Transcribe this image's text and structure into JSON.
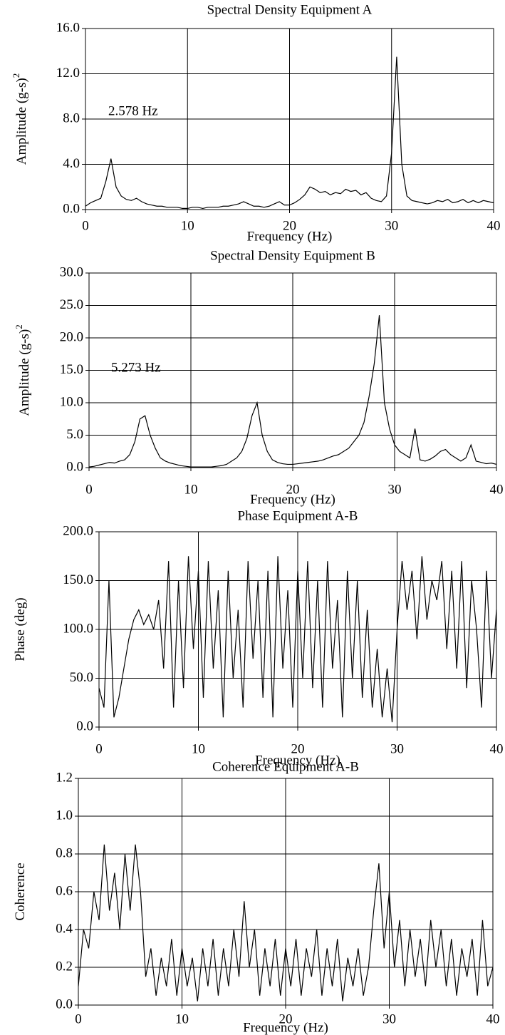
{
  "chart_data": [
    {
      "type": "line",
      "title": "Spectral Density  Equipment A",
      "x_label": "Frequency (Hz)",
      "y_label": "Amplitude (g-s)",
      "y_label_sup": "2",
      "annotation": "2.578 Hz",
      "color": "#000000",
      "grid": true,
      "xlim": [
        0,
        40
      ],
      "xticks": [
        0,
        10,
        20,
        30,
        40
      ],
      "ylim": [
        0,
        16
      ],
      "yticks": [
        {
          "value": 0,
          "label": "0.0"
        },
        {
          "value": 4,
          "label": "4.0"
        },
        {
          "value": 8,
          "label": "8.0"
        },
        {
          "value": 12,
          "label": "12.0"
        },
        {
          "value": 16,
          "label": "16.0"
        }
      ],
      "x": [
        0,
        0.5,
        1,
        1.5,
        2,
        2.5,
        3,
        3.5,
        4,
        4.5,
        5,
        5.5,
        6,
        6.5,
        7,
        7.5,
        8,
        8.5,
        9,
        9.5,
        10,
        10.5,
        11,
        11.5,
        12,
        12.5,
        13,
        13.5,
        14,
        14.5,
        15,
        15.5,
        16,
        16.5,
        17,
        17.5,
        18,
        18.5,
        19,
        19.5,
        20,
        20.5,
        21,
        21.5,
        22,
        22.5,
        23,
        23.5,
        24,
        24.5,
        25,
        25.5,
        26,
        26.5,
        27,
        27.5,
        28,
        28.5,
        29,
        29.5,
        30,
        30.5,
        31,
        31.5,
        32,
        32.5,
        33,
        33.5,
        34,
        34.5,
        35,
        35.5,
        36,
        36.5,
        37,
        37.5,
        38,
        38.5,
        39,
        39.5,
        40
      ],
      "values": [
        0.3,
        0.6,
        0.8,
        1.0,
        2.5,
        4.5,
        2.0,
        1.2,
        0.9,
        0.8,
        1.0,
        0.7,
        0.5,
        0.4,
        0.3,
        0.3,
        0.2,
        0.2,
        0.2,
        0.1,
        0.1,
        0.2,
        0.2,
        0.1,
        0.2,
        0.2,
        0.2,
        0.3,
        0.3,
        0.4,
        0.5,
        0.7,
        0.5,
        0.3,
        0.3,
        0.2,
        0.3,
        0.5,
        0.7,
        0.4,
        0.4,
        0.6,
        0.9,
        1.3,
        2.0,
        1.8,
        1.5,
        1.6,
        1.3,
        1.5,
        1.4,
        1.8,
        1.6,
        1.7,
        1.3,
        1.5,
        1.0,
        0.8,
        0.7,
        1.2,
        5.0,
        13.5,
        4.0,
        1.2,
        0.8,
        0.7,
        0.6,
        0.5,
        0.6,
        0.8,
        0.7,
        0.9,
        0.6,
        0.7,
        0.9,
        0.6,
        0.8,
        0.6,
        0.8,
        0.7,
        0.6
      ]
    },
    {
      "type": "line",
      "title": "Spectral Density  Equipment B",
      "x_label": "Frequency (Hz)",
      "y_label": "Amplitude (g-s)",
      "y_label_sup": "2",
      "annotation": "5.273 Hz",
      "color": "#000000",
      "grid": true,
      "xlim": [
        0,
        40
      ],
      "xticks": [
        0,
        10,
        20,
        30,
        40
      ],
      "ylim": [
        0,
        30
      ],
      "yticks": [
        {
          "value": 0,
          "label": "0.0"
        },
        {
          "value": 5,
          "label": "5.0"
        },
        {
          "value": 10,
          "label": "10.0"
        },
        {
          "value": 15,
          "label": "15.0"
        },
        {
          "value": 20,
          "label": "20.0"
        },
        {
          "value": 25,
          "label": "25.0"
        },
        {
          "value": 30,
          "label": "30.0"
        }
      ],
      "x": [
        0,
        0.5,
        1,
        1.5,
        2,
        2.5,
        3,
        3.5,
        4,
        4.5,
        5,
        5.5,
        6,
        6.5,
        7,
        7.5,
        8,
        8.5,
        9,
        9.5,
        10,
        10.5,
        11,
        11.5,
        12,
        12.5,
        13,
        13.5,
        14,
        14.5,
        15,
        15.5,
        16,
        16.5,
        17,
        17.5,
        18,
        18.5,
        19,
        19.5,
        20,
        20.5,
        21,
        21.5,
        22,
        22.5,
        23,
        23.5,
        24,
        24.5,
        25,
        25.5,
        26,
        26.5,
        27,
        27.5,
        28,
        28.5,
        29,
        29.5,
        30,
        30.5,
        31,
        31.5,
        32,
        32.5,
        33,
        33.5,
        34,
        34.5,
        35,
        35.5,
        36,
        36.5,
        37,
        37.5,
        38,
        38.5,
        39,
        39.5,
        40
      ],
      "values": [
        0.1,
        0.2,
        0.4,
        0.6,
        0.8,
        0.7,
        1.0,
        1.2,
        2.0,
        4.0,
        7.5,
        8.0,
        5.0,
        3.0,
        1.5,
        1.0,
        0.7,
        0.5,
        0.3,
        0.2,
        0.1,
        0.1,
        0.1,
        0.1,
        0.1,
        0.2,
        0.3,
        0.5,
        1.0,
        1.5,
        2.5,
        4.5,
        8.0,
        10.0,
        5.0,
        2.5,
        1.2,
        0.8,
        0.6,
        0.5,
        0.5,
        0.6,
        0.7,
        0.8,
        0.9,
        1.0,
        1.2,
        1.5,
        1.8,
        2.0,
        2.5,
        3.0,
        4.0,
        5.0,
        7.0,
        11.0,
        16.0,
        23.5,
        10.0,
        6.0,
        3.5,
        2.5,
        2.0,
        1.5,
        6.0,
        1.2,
        1.0,
        1.3,
        1.8,
        2.5,
        2.8,
        2.0,
        1.5,
        1.0,
        1.5,
        3.5,
        1.0,
        0.8,
        0.6,
        0.7,
        0.5
      ]
    },
    {
      "type": "line",
      "title": "Phase Equipment A-B",
      "x_label": "Frequency (Hz)",
      "y_label": "Phase (deg)",
      "color": "#000000",
      "grid": true,
      "xlim": [
        0,
        40
      ],
      "xticks": [
        0,
        10,
        20,
        30,
        40
      ],
      "ylim": [
        0,
        200
      ],
      "yticks": [
        {
          "value": 0,
          "label": "0.0"
        },
        {
          "value": 50,
          "label": "50.0"
        },
        {
          "value": 100,
          "label": "100.0"
        },
        {
          "value": 150,
          "label": "150.0"
        },
        {
          "value": 200,
          "label": "200.0"
        }
      ],
      "x": [
        0,
        0.5,
        1,
        1.5,
        2,
        2.5,
        3,
        3.5,
        4,
        4.5,
        5,
        5.5,
        6,
        6.5,
        7,
        7.5,
        8,
        8.5,
        9,
        9.5,
        10,
        10.5,
        11,
        11.5,
        12,
        12.5,
        13,
        13.5,
        14,
        14.5,
        15,
        15.5,
        16,
        16.5,
        17,
        17.5,
        18,
        18.5,
        19,
        19.5,
        20,
        20.5,
        21,
        21.5,
        22,
        22.5,
        23,
        23.5,
        24,
        24.5,
        25,
        25.5,
        26,
        26.5,
        27,
        27.5,
        28,
        28.5,
        29,
        29.5,
        30,
        30.5,
        31,
        31.5,
        32,
        32.5,
        33,
        33.5,
        34,
        34.5,
        35,
        35.5,
        36,
        36.5,
        37,
        37.5,
        38,
        38.5,
        39,
        39.5,
        40
      ],
      "values": [
        40,
        20,
        150,
        10,
        30,
        60,
        90,
        110,
        120,
        105,
        115,
        100,
        130,
        60,
        170,
        20,
        150,
        40,
        175,
        80,
        160,
        30,
        170,
        60,
        140,
        10,
        160,
        50,
        120,
        20,
        170,
        70,
        150,
        30,
        160,
        10,
        175,
        60,
        140,
        20,
        160,
        50,
        170,
        40,
        150,
        20,
        170,
        60,
        130,
        10,
        160,
        50,
        150,
        30,
        120,
        20,
        80,
        10,
        60,
        5,
        100,
        170,
        120,
        160,
        90,
        175,
        110,
        150,
        130,
        170,
        80,
        160,
        60,
        170,
        40,
        150,
        100,
        20,
        160,
        50,
        120
      ]
    },
    {
      "type": "line",
      "title": "Coherence Equipment A-B",
      "x_label": "Frequency (Hz)",
      "y_label": "Coherence",
      "color": "#000000",
      "grid": true,
      "xlim": [
        0,
        40
      ],
      "xticks": [
        0,
        10,
        20,
        30,
        40
      ],
      "ylim": [
        0,
        1.2
      ],
      "yticks": [
        {
          "value": 0,
          "label": "0.0"
        },
        0.2,
        0.4,
        0.6,
        0.8,
        {
          "value": 1,
          "label": "1.0"
        },
        1.2
      ],
      "x": [
        0,
        0.5,
        1,
        1.5,
        2,
        2.5,
        3,
        3.5,
        4,
        4.5,
        5,
        5.5,
        6,
        6.5,
        7,
        7.5,
        8,
        8.5,
        9,
        9.5,
        10,
        10.5,
        11,
        11.5,
        12,
        12.5,
        13,
        13.5,
        14,
        14.5,
        15,
        15.5,
        16,
        16.5,
        17,
        17.5,
        18,
        18.5,
        19,
        19.5,
        20,
        20.5,
        21,
        21.5,
        22,
        22.5,
        23,
        23.5,
        24,
        24.5,
        25,
        25.5,
        26,
        26.5,
        27,
        27.5,
        28,
        28.5,
        29,
        29.5,
        30,
        30.5,
        31,
        31.5,
        32,
        32.5,
        33,
        33.5,
        34,
        34.5,
        35,
        35.5,
        36,
        36.5,
        37,
        37.5,
        38,
        38.5,
        39,
        39.5,
        40
      ],
      "values": [
        0.1,
        0.4,
        0.3,
        0.6,
        0.45,
        0.85,
        0.5,
        0.7,
        0.4,
        0.8,
        0.5,
        0.85,
        0.6,
        0.15,
        0.3,
        0.05,
        0.25,
        0.1,
        0.35,
        0.05,
        0.3,
        0.1,
        0.25,
        0.02,
        0.3,
        0.1,
        0.35,
        0.05,
        0.3,
        0.1,
        0.4,
        0.15,
        0.55,
        0.2,
        0.4,
        0.05,
        0.3,
        0.1,
        0.35,
        0.05,
        0.3,
        0.1,
        0.35,
        0.05,
        0.3,
        0.15,
        0.4,
        0.05,
        0.3,
        0.1,
        0.35,
        0.02,
        0.25,
        0.1,
        0.3,
        0.05,
        0.2,
        0.5,
        0.75,
        0.3,
        0.6,
        0.2,
        0.45,
        0.1,
        0.4,
        0.15,
        0.35,
        0.1,
        0.45,
        0.2,
        0.4,
        0.1,
        0.35,
        0.05,
        0.3,
        0.15,
        0.35,
        0.05,
        0.45,
        0.1,
        0.2
      ]
    }
  ]
}
